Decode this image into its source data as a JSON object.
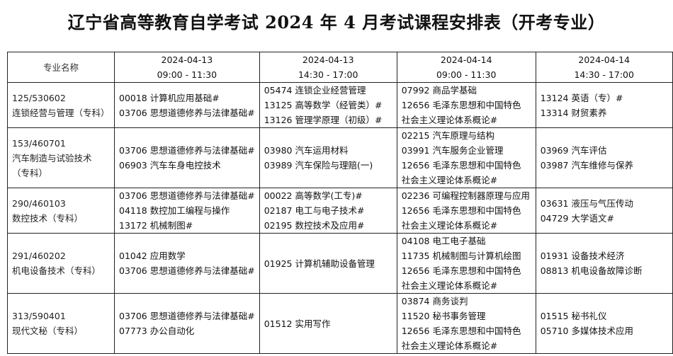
{
  "title": "辽宁省高等教育自学考试 2024 年 4 月考试课程安排表（开考专业）",
  "header": {
    "major_label": "专业名称",
    "sessions": [
      {
        "date": "2024-04-13",
        "time": "09:00 - 11:30"
      },
      {
        "date": "2024-04-13",
        "time": "14:30 - 17:00"
      },
      {
        "date": "2024-04-14",
        "time": "09:00 - 11:30"
      },
      {
        "date": "2024-04-14",
        "time": "14:30 - 17:00"
      }
    ]
  },
  "rows": [
    {
      "major_code": "125/530602",
      "major_name": [
        "连锁经营与管理（专科）"
      ],
      "cells": [
        [
          "00018  计算机应用基础#",
          "03706  思想道德修养与法律基础#"
        ],
        [
          "05474  连锁企业经营管理",
          "13125  高等数学（经管类）#",
          "13126  管理学原理（初级）#"
        ],
        [
          "07992  商品学基础",
          "12656  毛泽东思想和中国特色",
          "社会主义理论体系概论#"
        ],
        [
          "13124  英语（专）#",
          "13314  财贸素养"
        ]
      ]
    },
    {
      "major_code": "153/460701",
      "major_name": [
        "汽车制造与试验技术",
        "（专科）"
      ],
      "cells": [
        [
          "03706  思想道德修养与法律基础#",
          "06903  汽车车身电控技术"
        ],
        [
          "03980  汽车运用材料",
          "03989  汽车保险与理赔(一)"
        ],
        [
          "02215  汽车原理与结构",
          "03991  汽车服务企业管理",
          "12656  毛泽东思想和中国特色",
          "社会主义理论体系概论#"
        ],
        [
          "03969  汽车评估",
          "03987  汽车维修与保养"
        ]
      ]
    },
    {
      "major_code": "290/460103",
      "major_name": [
        "数控技术（专科）"
      ],
      "cells": [
        [
          "03706  思想道德修养与法律基础#",
          "04118  数控加工编程与操作",
          "13172  机械制图#"
        ],
        [
          "00022  高等数学(工专)#",
          "02187  电工与电子技术#",
          "02195  数控技术及应用#"
        ],
        [
          "02236  可编程控制器原理与应用",
          "12656  毛泽东思想和中国特色",
          "社会主义理论体系概论#"
        ],
        [
          "03631  液压与气压传动",
          "04729  大学语文#"
        ]
      ]
    },
    {
      "major_code": "291/460202",
      "major_name": [
        "机电设备技术（专科）"
      ],
      "cells": [
        [
          "01042  应用数学",
          "03706  思想道德修养与法律基础#"
        ],
        [
          "01925  计算机辅助设备管理"
        ],
        [
          "04108  电工电子基础",
          "11735  机械制图与计算机绘图",
          "12656  毛泽东思想和中国特色",
          "社会主义理论体系概论#"
        ],
        [
          "01931  设备技术经济",
          "08813  机电设备故障诊断"
        ]
      ]
    },
    {
      "major_code": "313/590401",
      "major_name": [
        "现代文秘（专科）"
      ],
      "cells": [
        [
          "03706  思想道德修养与法律基础#",
          "07773  办公自动化"
        ],
        [
          "01512  实用写作"
        ],
        [
          "03874  商务谈判",
          "11520  秘书事务管理",
          "12656  毛泽东思想和中国特色",
          "社会主义理论体系概论#"
        ],
        [
          "01515  秘书礼仪",
          "05710  多媒体技术应用"
        ]
      ]
    }
  ]
}
